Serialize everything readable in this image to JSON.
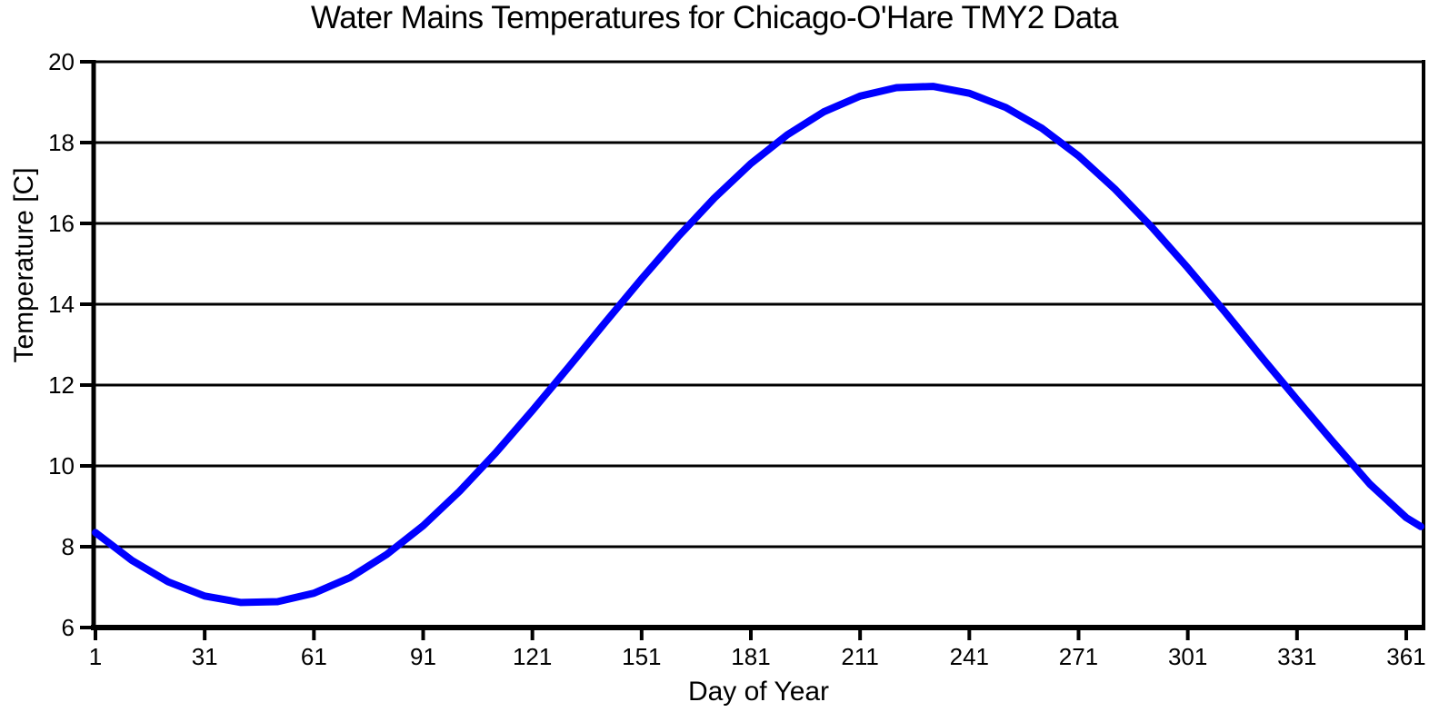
{
  "chart_data": {
    "type": "line",
    "title": "Water Mains Temperatures for Chicago-O'Hare TMY2 Data",
    "xlabel": "Day of Year",
    "ylabel": "Temperature [C]",
    "xlim": [
      1,
      365
    ],
    "ylim": [
      6,
      20
    ],
    "xticks": [
      1,
      31,
      61,
      91,
      121,
      151,
      181,
      211,
      241,
      271,
      301,
      331,
      361
    ],
    "yticks": [
      6,
      8,
      10,
      12,
      14,
      16,
      18,
      20
    ],
    "grid": "horizontal-black-gridlines",
    "legend_position": "none",
    "line_color": "#0000ff",
    "axis_color": "#000000",
    "background_color": "#ffffff",
    "curve_description": "Annual sinusoidal water mains temperature: minimum ~6.6 C near day 45, maximum ~19.4 C near day 228",
    "series": [
      {
        "x": [
          1,
          11,
          21,
          31,
          41,
          51,
          61,
          71,
          81,
          91,
          101,
          111,
          121,
          131,
          141,
          151,
          161,
          171,
          181,
          191,
          201,
          211,
          221,
          231,
          241,
          251,
          261,
          271,
          281,
          291,
          301,
          311,
          321,
          331,
          341,
          351,
          361,
          365
        ],
        "y": [
          8.35,
          7.66,
          7.13,
          6.78,
          6.62,
          6.64,
          6.85,
          7.24,
          7.81,
          8.52,
          9.37,
          10.33,
          11.37,
          12.45,
          13.55,
          14.63,
          15.67,
          16.63,
          17.48,
          18.19,
          18.76,
          19.15,
          19.36,
          19.39,
          19.22,
          18.87,
          18.35,
          17.67,
          16.85,
          15.92,
          14.9,
          13.83,
          12.72,
          11.64,
          10.58,
          9.55,
          8.72,
          8.5
        ]
      }
    ]
  }
}
